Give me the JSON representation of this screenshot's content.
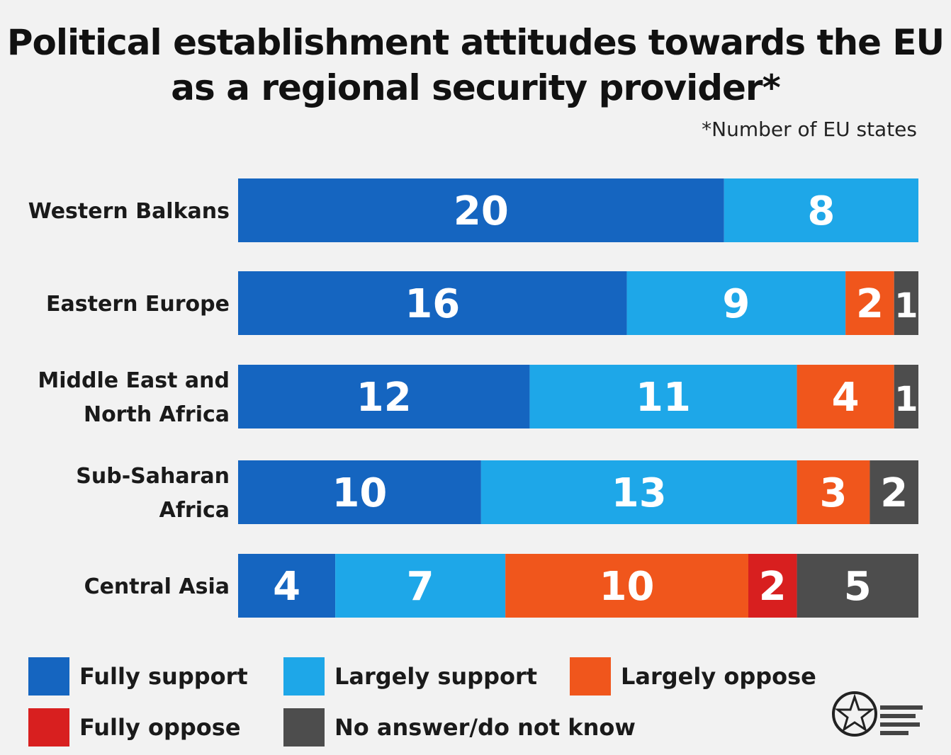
{
  "header": {
    "title_line1": "Political establishment attitudes towards the EU",
    "title_line2": "as a regional security provider*",
    "note": "*Number of EU states"
  },
  "colors": {
    "fully_support": "#1565c0",
    "largely_support": "#1ea7e8",
    "largely_oppose": "#f0561c",
    "fully_oppose": "#d81f1f",
    "no_answer": "#4d4d4d"
  },
  "chart_data": {
    "type": "bar",
    "orientation": "horizontal",
    "stacked": true,
    "title": "Political establishment attitudes towards the EU as a regional security provider*",
    "note": "*Number of EU states",
    "categories": [
      [
        "Western Balkans"
      ],
      [
        "Eastern Europe"
      ],
      [
        "Middle East and",
        "North Africa"
      ],
      [
        "Sub-Saharan",
        "Africa"
      ],
      [
        "Central Asia"
      ]
    ],
    "series": [
      {
        "name": "Fully support",
        "color": "#1565c0",
        "values": [
          20,
          16,
          12,
          10,
          4
        ]
      },
      {
        "name": "Largely support",
        "color": "#1ea7e8",
        "values": [
          8,
          9,
          11,
          13,
          7
        ]
      },
      {
        "name": "Largely oppose",
        "color": "#f0561c",
        "values": [
          0,
          2,
          4,
          3,
          10
        ]
      },
      {
        "name": "Fully oppose",
        "color": "#d81f1f",
        "values": [
          0,
          0,
          0,
          0,
          2
        ]
      },
      {
        "name": "No answer/do not know",
        "color": "#4d4d4d",
        "values": [
          0,
          1,
          1,
          2,
          5
        ]
      }
    ],
    "legend_position": "bottom",
    "grid": false
  }
}
